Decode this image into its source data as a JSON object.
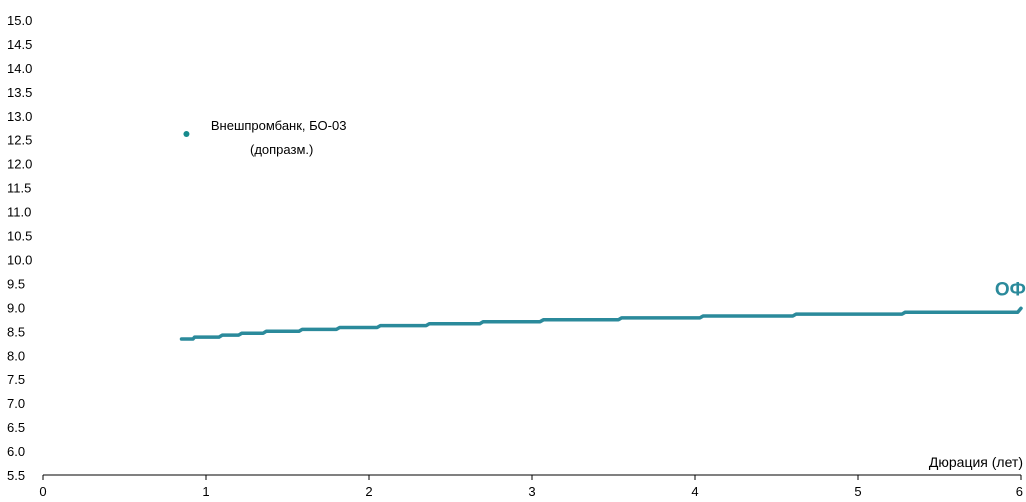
{
  "chart_data": {
    "type": "line",
    "title": "",
    "xlabel": "Дюрация (лет)",
    "ylabel": "",
    "xlim": [
      0,
      6
    ],
    "ylim": [
      5.5,
      15.0
    ],
    "x_ticks": [
      0,
      1,
      2,
      3,
      4,
      5,
      6
    ],
    "x_tick_labels": [
      "0",
      "1",
      "2",
      "3",
      "4",
      "5",
      "6"
    ],
    "y_ticks": [
      5.5,
      6.0,
      6.5,
      7.0,
      7.5,
      8.0,
      8.5,
      9.0,
      9.5,
      10.0,
      10.5,
      11.0,
      11.5,
      12.0,
      12.5,
      13.0,
      13.5,
      14.0,
      14.5,
      15.0
    ],
    "y_tick_labels": [
      "5.5",
      "6.0",
      "6.5",
      "7.0",
      "7.5",
      "8.0",
      "8.5",
      "9.0",
      "9.5",
      "10.0",
      "10.5",
      "11.0",
      "11.5",
      "12.0",
      "12.5",
      "13.0",
      "13.5",
      "14.0",
      "14.5",
      "15.0"
    ],
    "grid": false,
    "legend": "none",
    "series": [
      {
        "name": "ОФЗ",
        "kind": "line",
        "color": "#2b8a9b",
        "x": [
          0.85,
          0.92,
          0.93,
          1.08,
          1.1,
          1.2,
          1.22,
          1.35,
          1.37,
          1.57,
          1.59,
          1.8,
          1.82,
          2.05,
          2.07,
          2.35,
          2.37,
          2.68,
          2.7,
          3.05,
          3.07,
          3.53,
          3.55,
          4.03,
          4.05,
          4.6,
          4.62,
          5.27,
          5.29,
          5.98,
          6.0
        ],
        "y": [
          8.34,
          8.34,
          8.38,
          8.38,
          8.42,
          8.42,
          8.46,
          8.46,
          8.5,
          8.5,
          8.54,
          8.54,
          8.58,
          8.58,
          8.62,
          8.62,
          8.66,
          8.66,
          8.7,
          8.7,
          8.74,
          8.74,
          8.78,
          8.78,
          8.82,
          8.82,
          8.86,
          8.86,
          8.9,
          8.9,
          8.98
        ]
      },
      {
        "name": "Внешпромбанк, БО-03",
        "kind": "scatter",
        "color": "#168a8c",
        "x": [
          0.88
        ],
        "y": [
          12.62
        ]
      }
    ],
    "annotations": [
      {
        "text": "Внешпромбанк, БО-03",
        "x": 1.03,
        "y": 12.7
      },
      {
        "text": "(допразм.)",
        "x": 1.27,
        "y": 12.2
      },
      {
        "text": "ОФЗ",
        "x": 5.84,
        "y": 9.25
      }
    ]
  }
}
